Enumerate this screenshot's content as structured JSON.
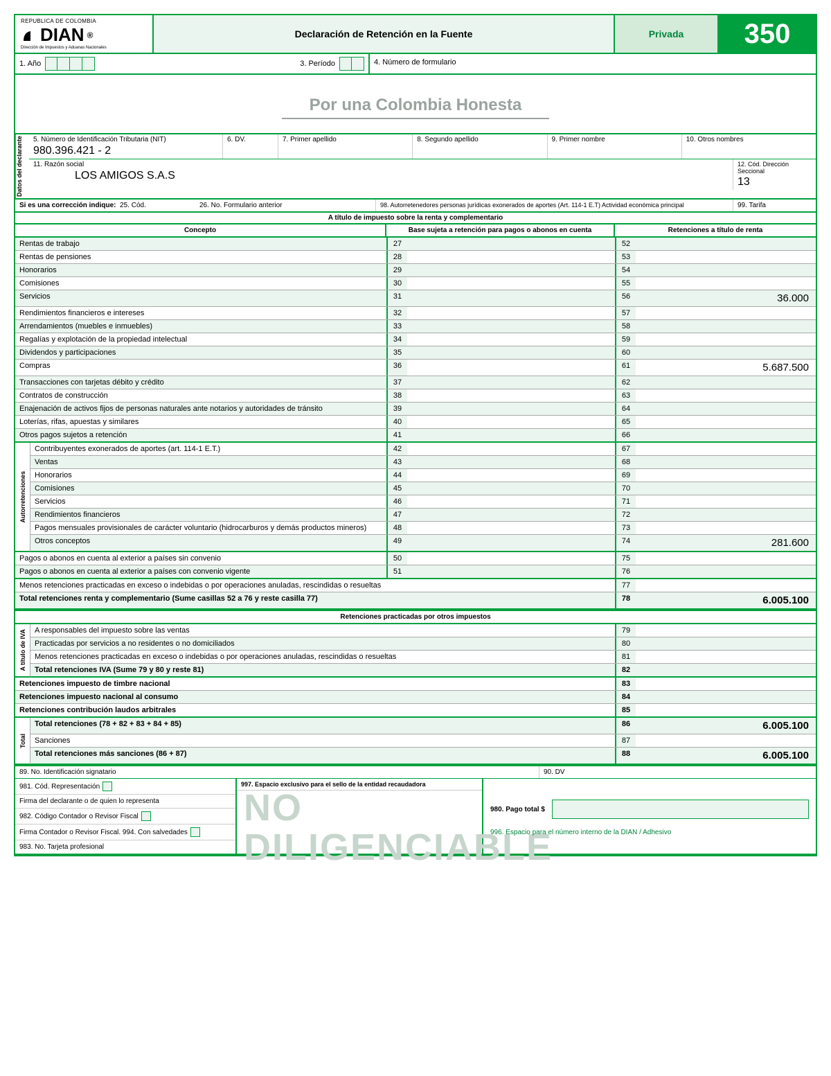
{
  "header": {
    "republica": "REPUBLICA DE COLOMBIA",
    "agency": "DIAN",
    "agency_sub": "Dirección de Impuestos y Aduanas Nacionales",
    "title": "Declaración de Retención en la Fuente",
    "privacy": "Privada",
    "form_number": "350"
  },
  "row2": {
    "ano_label": "1. Año",
    "periodo_label": "3. Período",
    "num_form_label": "4. Número de formulario"
  },
  "slogan": "Por una Colombia Honesta",
  "declarante": {
    "side_label": "Datos del declarante",
    "nit_label": "5. Número de Identificación Tributaria (NIT)",
    "nit_value": "980.396.421 - 2",
    "dv_label": "6. DV.",
    "ap1_label": "7. Primer apellido",
    "ap2_label": "8. Segundo apellido",
    "n1_label": "9. Primer nombre",
    "n2_label": "10. Otros nombres",
    "razon_label": "11. Razón social",
    "razon_value": "LOS AMIGOS S.A.S",
    "seccional_label": "12. Cód. Dirección Seccional",
    "seccional_value": "13"
  },
  "correccion": {
    "label": "Si es una corrección indique:",
    "cod": "25. Cód.",
    "noant": "26. No. Formulario anterior",
    "auto": "98. Autorretenedores  personas jurídicas exonerados de aportes (Art. 114-1 E.T) Actividad económica principal",
    "tarifa": "99. Tarifa"
  },
  "section1_title": "A título de impuesto sobre la renta y complementario",
  "table_headers": {
    "concepto": "Concepto",
    "base": "Base sujeta a retención para pagos o abonos en cuenta",
    "retencion": "Retenciones a título de renta"
  },
  "rows_main": [
    {
      "label": "Rentas de trabajo",
      "n1": "27",
      "n2": "52",
      "v1": "",
      "v2": "",
      "alt": true
    },
    {
      "label": "Rentas de pensiones",
      "n1": "28",
      "n2": "53",
      "v1": "",
      "v2": "",
      "alt": false
    },
    {
      "label": "Honorarios",
      "n1": "29",
      "n2": "54",
      "v1": "",
      "v2": "",
      "alt": true
    },
    {
      "label": "Comisiones",
      "n1": "30",
      "n2": "55",
      "v1": "",
      "v2": "",
      "alt": false
    },
    {
      "label": "Servicios",
      "n1": "31",
      "n2": "56",
      "v1": "",
      "v2": "36.000",
      "alt": true
    },
    {
      "label": "Rendimientos financieros e intereses",
      "n1": "32",
      "n2": "57",
      "v1": "",
      "v2": "",
      "alt": false
    },
    {
      "label": "Arrendamientos (muebles e inmuebles)",
      "n1": "33",
      "n2": "58",
      "v1": "",
      "v2": "",
      "alt": true
    },
    {
      "label": "Regalías y explotación de la propiedad intelectual",
      "n1": "34",
      "n2": "59",
      "v1": "",
      "v2": "",
      "alt": false
    },
    {
      "label": "Dividendos y participaciones",
      "n1": "35",
      "n2": "60",
      "v1": "",
      "v2": "",
      "alt": true
    },
    {
      "label": "Compras",
      "n1": "36",
      "n2": "61",
      "v1": "",
      "v2": "5.687.500",
      "alt": false
    },
    {
      "label": "Transacciones con tarjetas débito y crédito",
      "n1": "37",
      "n2": "62",
      "v1": "",
      "v2": "",
      "alt": true
    },
    {
      "label": "Contratos de construcción",
      "n1": "38",
      "n2": "63",
      "v1": "",
      "v2": "",
      "alt": false
    },
    {
      "label": "Enajenación de activos fijos de personas naturales ante notarios y autoridades de tránsito",
      "n1": "39",
      "n2": "64",
      "v1": "",
      "v2": "",
      "alt": true
    },
    {
      "label": "Loterías, rifas, apuestas y similares",
      "n1": "40",
      "n2": "65",
      "v1": "",
      "v2": "",
      "alt": false
    },
    {
      "label": "Otros pagos sujetos a retención",
      "n1": "41",
      "n2": "66",
      "v1": "",
      "v2": "",
      "alt": true
    }
  ],
  "auto_side": "Autorretenciones",
  "rows_auto": [
    {
      "label": "Contribuyentes exonerados de aportes (art. 114-1 E.T.)",
      "n1": "42",
      "n2": "67",
      "v1": "",
      "v2": "",
      "alt": false
    },
    {
      "label": "Ventas",
      "n1": "43",
      "n2": "68",
      "v1": "",
      "v2": "",
      "alt": true
    },
    {
      "label": "Honorarios",
      "n1": "44",
      "n2": "69",
      "v1": "",
      "v2": "",
      "alt": false
    },
    {
      "label": "Comisiones",
      "n1": "45",
      "n2": "70",
      "v1": "",
      "v2": "",
      "alt": true
    },
    {
      "label": "Servicios",
      "n1": "46",
      "n2": "71",
      "v1": "",
      "v2": "",
      "alt": false
    },
    {
      "label": "Rendimientos financieros",
      "n1": "47",
      "n2": "72",
      "v1": "",
      "v2": "",
      "alt": true
    },
    {
      "label": "Pagos mensuales provisionales de carácter voluntario (hidrocarburos y demás productos mineros)",
      "n1": "48",
      "n2": "73",
      "v1": "",
      "v2": "",
      "alt": false
    },
    {
      "label": "Otros conceptos",
      "n1": "49",
      "n2": "74",
      "v1": "",
      "v2": "281.600",
      "alt": true
    }
  ],
  "rows_ext": [
    {
      "label": "Pagos o abonos en cuenta al exterior a países sin convenio",
      "n1": "50",
      "n2": "75",
      "v1": "",
      "v2": "",
      "alt": false
    },
    {
      "label": "Pagos o abonos en cuenta al exterior a países con convenio vigente",
      "n1": "51",
      "n2": "76",
      "v1": "",
      "v2": "",
      "alt": true
    }
  ],
  "rows_single": [
    {
      "label": "Menos retenciones practicadas en exceso o indebidas o por operaciones anuladas, rescindidas o resueltas",
      "n": "77",
      "v": "",
      "alt": false,
      "bold": false
    },
    {
      "label": "Total retenciones renta y complementario (Sume casillas 52 a 76 y reste casilla 77)",
      "n": "78",
      "v": "6.005.100",
      "alt": true,
      "bold": true
    }
  ],
  "section2_title": "Retenciones practicadas por otros impuestos",
  "iva_side": "A título de IVA",
  "rows_iva": [
    {
      "label": "A responsables del impuesto sobre  las ventas",
      "n": "79",
      "v": "",
      "alt": false,
      "bold": false
    },
    {
      "label": "Practicadas por servicios a no residentes o no domiciliados",
      "n": "80",
      "v": "",
      "alt": true,
      "bold": false
    },
    {
      "label": "Menos retenciones practicadas en exceso o indebidas o por operaciones anuladas, rescindidas o resueltas",
      "n": "81",
      "v": "",
      "alt": false,
      "bold": false
    },
    {
      "label": "Total retenciones IVA (Sume 79 y 80 y reste 81)",
      "n": "82",
      "v": "",
      "alt": true,
      "bold": true
    }
  ],
  "rows_other": [
    {
      "label": "Retenciones impuesto de timbre nacional",
      "n": "83",
      "v": "",
      "alt": false,
      "bold": true
    },
    {
      "label": "Retenciones impuesto nacional al consumo",
      "n": "84",
      "v": "",
      "alt": true,
      "bold": true
    },
    {
      "label": "Retenciones contribución laudos arbitrales",
      "n": "85",
      "v": "",
      "alt": false,
      "bold": true
    }
  ],
  "total_side": "Total",
  "rows_total": [
    {
      "label": "Total retenciones (78 + 82 + 83 + 84 + 85)",
      "n": "86",
      "v": "6.005.100",
      "alt": true,
      "bold": true
    },
    {
      "label": "Sanciones",
      "n": "87",
      "v": "",
      "alt": false,
      "bold": false
    },
    {
      "label": "Total retenciones más sanciones (86 + 87)",
      "n": "88",
      "v": "6.005.100",
      "alt": true,
      "bold": true
    }
  ],
  "footer": {
    "sig_id": "89. No. Identificación signatario",
    "sig_dv": "90. DV",
    "cod_rep": "981. Cód. Representación",
    "firma_decl": "Firma del declarante o de quien lo representa",
    "cod_cont": "982. Código Contador o Revisor Fiscal",
    "firma_cont": "Firma Contador o Revisor Fiscal. 994. Con salvedades",
    "tarjeta": "983. No. Tarjeta profesional",
    "exclusivo": "997. Espacio exclusivo para el sello de la entidad recaudadora",
    "pago": "980. Pago total $",
    "adhesivo": "996. Espacio para el número interno de la DIAN / Adhesivo",
    "watermark1": "NO",
    "watermark2": "DILIGENCIABLE"
  }
}
